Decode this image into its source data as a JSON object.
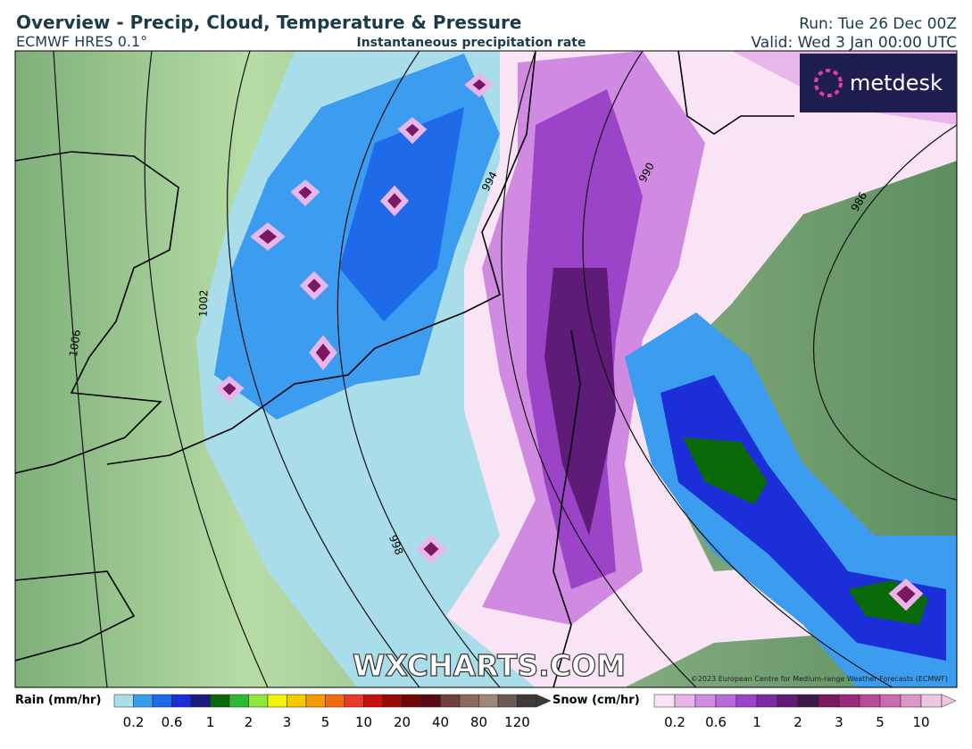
{
  "header": {
    "title": "Overview - Precip, Cloud, Temperature & Pressure",
    "model": "ECMWF HRES 0.1°",
    "subtitle": "Instantaneous precipitation rate",
    "run": "Run: Tue 26 Dec 00Z",
    "valid": "Valid: Wed 3 Jan 00:00 UTC"
  },
  "map": {
    "isobars": [
      "1006",
      "1002",
      "998",
      "994",
      "990",
      "986"
    ],
    "watermark": "WXCHARTS.COM",
    "copyright": "©2023 European Centre for Medium-range Weather Forecasts (ECMWF)",
    "logo": "metdesk"
  },
  "legend": {
    "rain": {
      "title": "Rain (mm/hr)",
      "labels": [
        "0.2",
        "0.6",
        "1",
        "2",
        "3",
        "5",
        "10",
        "20",
        "40",
        "80",
        "120"
      ],
      "colors": [
        "#a9dde9",
        "#3c9cf0",
        "#1f6ae8",
        "#1c2ed8",
        "#1a1a80",
        "#0a6a0a",
        "#2fb92f",
        "#8ee83a",
        "#f2f20a",
        "#f5c800",
        "#f59a00",
        "#f26a10",
        "#e83a2a",
        "#c81010",
        "#9a0a0a",
        "#6e0606",
        "#5a0a14",
        "#704040",
        "#8c6a5a",
        "#a08878",
        "#6a5a52",
        "#3e3a3a"
      ]
    },
    "snow": {
      "title": "Snow (cm/hr)",
      "labels": [
        "0.2",
        "0.6",
        "1",
        "2",
        "3",
        "5",
        "10"
      ],
      "colors": [
        "#f8e4f4",
        "#e8b6ea",
        "#d18ae2",
        "#b86ad8",
        "#9c44c8",
        "#7c2aa0",
        "#5e1c78",
        "#3e1848",
        "#7a1860",
        "#9a2a7c",
        "#b84a98",
        "#cc6ab0",
        "#dc96c8",
        "#ecc8e0"
      ]
    }
  }
}
